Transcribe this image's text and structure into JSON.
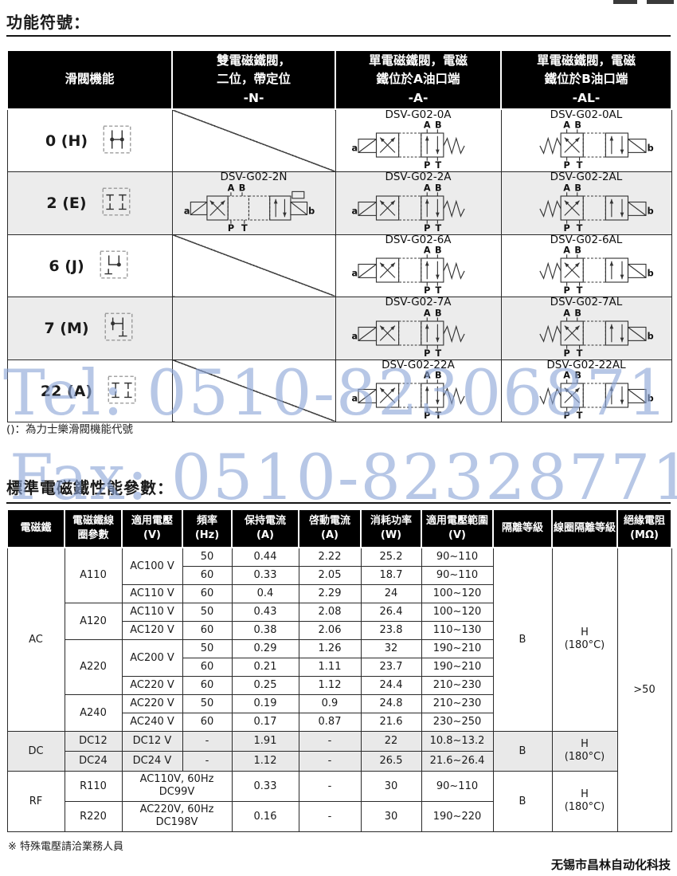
{
  "page": {
    "title1": "功能符號：",
    "note1": "()：為力士樂滑閥機能代號",
    "title2": "標準電磁鐵性能參數：",
    "footnote": "※ 特殊電壓請洽業務人員",
    "company": "无锡市昌林自动化科技"
  },
  "watermark": {
    "tel": "Tel: 0510-82306871",
    "fax": "Fax: 0510-82328771",
    "color": "#8aa4d6"
  },
  "valve_labels": {
    "a": "a",
    "b": "b",
    "ab": "A B",
    "pt": "P T"
  },
  "symbol_table": {
    "headers": [
      "滑閥機能",
      "雙電磁鐵閥，\n二位，帶定位\n-N-",
      "單電磁鐵閥，電磁\n鐵位於A油口端\n-A-",
      "單電磁鐵閥，電磁\n鐵位於B油口端\n-AL-"
    ],
    "rows": [
      {
        "func": "0 (H)",
        "n": "",
        "a": "DSV-G02-0A",
        "al": "DSV-G02-0AL"
      },
      {
        "func": "2 (E)",
        "n": "DSV-G02-2N",
        "a": "DSV-G02-2A",
        "al": "DSV-G02-2AL"
      },
      {
        "func": "6 (J)",
        "n": "",
        "a": "DSV-G02-6A",
        "al": "DSV-G02-6AL"
      },
      {
        "func": "7 (M)",
        "n": "",
        "a": "DSV-G02-7A",
        "al": "DSV-G02-7AL"
      },
      {
        "func": "22 (A)",
        "n": "",
        "a": "DSV-G02-22A",
        "al": "DSV-G02-22AL"
      }
    ]
  },
  "perf": {
    "headers": [
      "電磁鐵",
      "電磁鐵線\n圈參數",
      "適用電壓\n(V)",
      "頻率\n(Hz)",
      "保持電流\n(A)",
      "啓動電流\n(A)",
      "消耗功率\n(W)",
      "適用電壓範圍\n(V)",
      "隔離等級",
      "線圈隔離等級",
      "絕緣電阻\n(MΩ)"
    ],
    "ac": {
      "label": "AC",
      "rows": [
        {
          "coil": "A110",
          "v": "AC100 V",
          "hz": "50",
          "hold": "0.44",
          "start": "2.22",
          "w": "25.2",
          "range": "90~110"
        },
        {
          "hz": "60",
          "hold": "0.33",
          "start": "2.05",
          "w": "18.7",
          "range": "90~110"
        },
        {
          "v": "AC110 V",
          "hz": "60",
          "hold": "0.4",
          "start": "2.29",
          "w": "24",
          "range": "100~120"
        },
        {
          "coil": "A120",
          "v": "AC110 V",
          "hz": "50",
          "hold": "0.43",
          "start": "2.08",
          "w": "26.4",
          "range": "100~120"
        },
        {
          "v": "AC120 V",
          "hz": "60",
          "hold": "0.38",
          "start": "2.06",
          "w": "23.8",
          "range": "110~130"
        },
        {
          "coil": "A220",
          "v": "AC200 V",
          "hz": "50",
          "hold": "0.29",
          "start": "1.26",
          "w": "32",
          "range": "190~210"
        },
        {
          "hz": "60",
          "hold": "0.21",
          "start": "1.11",
          "w": "23.7",
          "range": "190~210"
        },
        {
          "v": "AC220 V",
          "hz": "60",
          "hold": "0.25",
          "start": "1.12",
          "w": "24.4",
          "range": "210~230"
        },
        {
          "coil": "A240",
          "v": "AC220 V",
          "hz": "50",
          "hold": "0.19",
          "start": "0.9",
          "w": "24.8",
          "range": "210~230"
        },
        {
          "v": "AC240 V",
          "hz": "60",
          "hold": "0.17",
          "start": "0.87",
          "w": "21.6",
          "range": "230~250"
        }
      ],
      "iso": "B",
      "coil_iso": "H\n(180°C)"
    },
    "dc": {
      "label": "DC",
      "rows": [
        {
          "coil": "DC12",
          "v": "DC12 V",
          "hz": "-",
          "hold": "1.91",
          "start": "-",
          "w": "22",
          "range": "10.8~13.2"
        },
        {
          "coil": "DC24",
          "v": "DC24 V",
          "hz": "-",
          "hold": "1.12",
          "start": "-",
          "w": "26.5",
          "range": "21.6~26.4"
        }
      ],
      "iso": "B",
      "coil_iso": "H\n(180°C)"
    },
    "rf": {
      "label": "RF",
      "rows": [
        {
          "coil": "R110",
          "v": "AC110V, 60Hz\nDC99V",
          "hold": "0.33",
          "start": "-",
          "w": "30",
          "range": "90~110"
        },
        {
          "coil": "R220",
          "v": "AC220V, 60Hz\nDC198V",
          "hold": "0.16",
          "start": "-",
          "w": "30",
          "range": "190~220"
        }
      ],
      "iso": "B",
      "coil_iso": "H\n(180°C)"
    },
    "insulation": ">50"
  }
}
